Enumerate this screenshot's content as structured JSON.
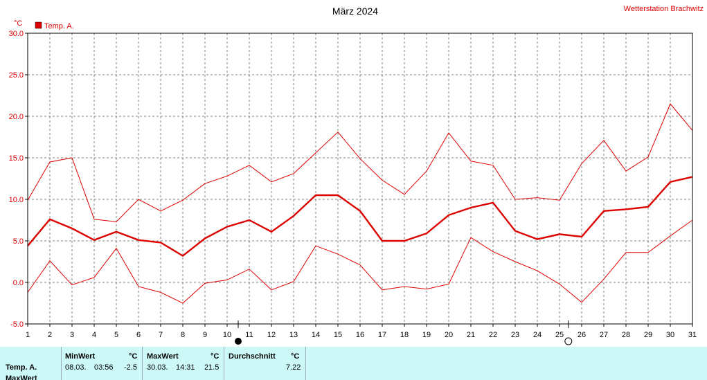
{
  "chart_data": {
    "type": "line",
    "title": "März 2024",
    "station": "Wetterstation Brachwitz",
    "ylabel": "°C",
    "ylim": [
      -5,
      30
    ],
    "yticks": [
      "30.0",
      "25.0",
      "20.0",
      "15.0",
      "10.0",
      "5.0",
      "0.0",
      "-5.0"
    ],
    "ytick_values": [
      30,
      25,
      20,
      15,
      10,
      5,
      0,
      -5
    ],
    "x": [
      1,
      2,
      3,
      4,
      5,
      6,
      7,
      8,
      9,
      10,
      11,
      12,
      13,
      14,
      15,
      16,
      17,
      18,
      19,
      20,
      21,
      22,
      23,
      24,
      25,
      26,
      27,
      28,
      29,
      30,
      31
    ],
    "grid": true,
    "legend": "top-left",
    "series": [
      {
        "name": "Temp. A.",
        "color": "#dd0000",
        "role": "mean",
        "values": [
          4.4,
          7.6,
          6.5,
          5.1,
          6.1,
          5.1,
          4.8,
          3.2,
          5.3,
          6.7,
          7.5,
          6.1,
          8.0,
          10.5,
          10.5,
          8.6,
          5.0,
          5.0,
          5.9,
          8.1,
          9.0,
          9.6,
          6.2,
          5.2,
          5.8,
          5.5,
          8.6,
          8.8,
          9.1,
          12.1,
          12.7
        ]
      },
      {
        "role": "max",
        "color": "#dd0000",
        "values": [
          9.9,
          14.5,
          15.0,
          7.6,
          7.3,
          10.0,
          8.6,
          9.9,
          11.9,
          12.8,
          14.1,
          12.1,
          13.1,
          15.6,
          18.1,
          14.9,
          12.3,
          10.6,
          13.4,
          18.0,
          14.6,
          14.1,
          10.0,
          10.2,
          9.9,
          14.3,
          17.1,
          13.4,
          15.1,
          21.5,
          18.3
        ]
      },
      {
        "role": "min",
        "color": "#dd0000",
        "values": [
          -1.2,
          2.6,
          -0.3,
          0.6,
          4.1,
          -0.5,
          -1.2,
          -2.5,
          -0.1,
          0.3,
          1.6,
          -0.9,
          0.1,
          4.4,
          3.4,
          2.1,
          -0.9,
          -0.5,
          -0.8,
          -0.2,
          5.4,
          3.7,
          2.5,
          1.4,
          -0.2,
          -2.4,
          0.4,
          3.6,
          3.6,
          5.6,
          7.5
        ]
      }
    ],
    "moon_markers": [
      {
        "icon": "full-moon-icon",
        "day": 10.5
      },
      {
        "icon": "new-moon-icon",
        "day": 25.4
      }
    ]
  },
  "stats": {
    "row_labels": [
      "Temp. A.",
      "MaxWert"
    ],
    "min": {
      "header": "MinWert",
      "unit": "°C",
      "date": "08.03.",
      "time": "03:56",
      "value": "-2.5"
    },
    "max": {
      "header": "MaxWert",
      "unit": "°C",
      "date": "30.03.",
      "time": "14:31",
      "value": "21.5"
    },
    "avg": {
      "header": "Durchschnitt",
      "unit": "°C",
      "value": "7.22"
    }
  },
  "colors": {
    "line": "#dd0000",
    "panel": "#ccf8f8",
    "grid": "#808080"
  }
}
